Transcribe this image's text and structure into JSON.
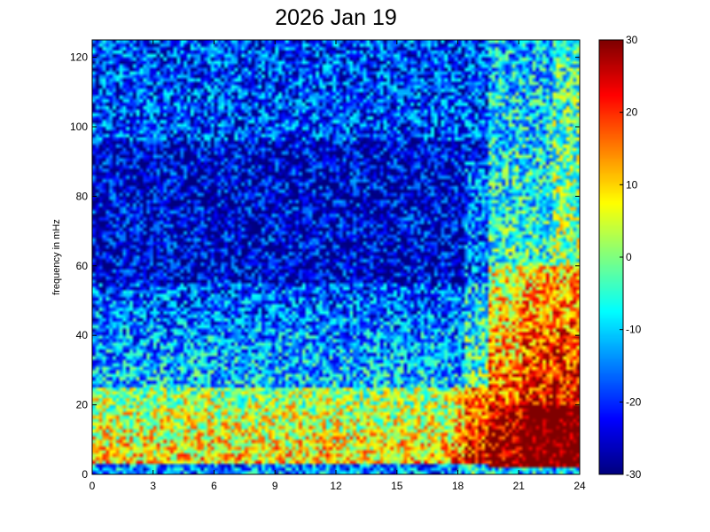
{
  "chart_data": {
    "type": "heatmap",
    "title": "2026 Jan 19",
    "xlabel": "",
    "ylabel": "frequency in mHz",
    "xlim": [
      0,
      24
    ],
    "ylim": [
      0,
      125
    ],
    "xticks": [
      0,
      3,
      6,
      9,
      12,
      15,
      18,
      21,
      24
    ],
    "yticks": [
      0,
      20,
      40,
      60,
      80,
      100,
      120
    ],
    "colorbar": {
      "colormap": "jet",
      "clim": [
        -30,
        30
      ],
      "ticks": [
        -30,
        -20,
        -10,
        0,
        10,
        20,
        30
      ]
    },
    "grid_x_hours": 144,
    "grid_y_bins": 125,
    "description_of_values": {
      "low_freq_band_0_to_3_mHz_before_19h": -15,
      "low_freq_3_to_25_mHz_before_19h": 10,
      "mid_freq_25_to_55_mHz_before_19h": -10,
      "high_freq_55_to_125_mHz_before_19h": -25,
      "after_19_5h_low_freq_0_to_20_mHz": 30,
      "after_19_5h_mid_freq_20_to_60_mHz": 18,
      "after_19_5h_high_freq_60_to_125_mHz": -5
    }
  }
}
